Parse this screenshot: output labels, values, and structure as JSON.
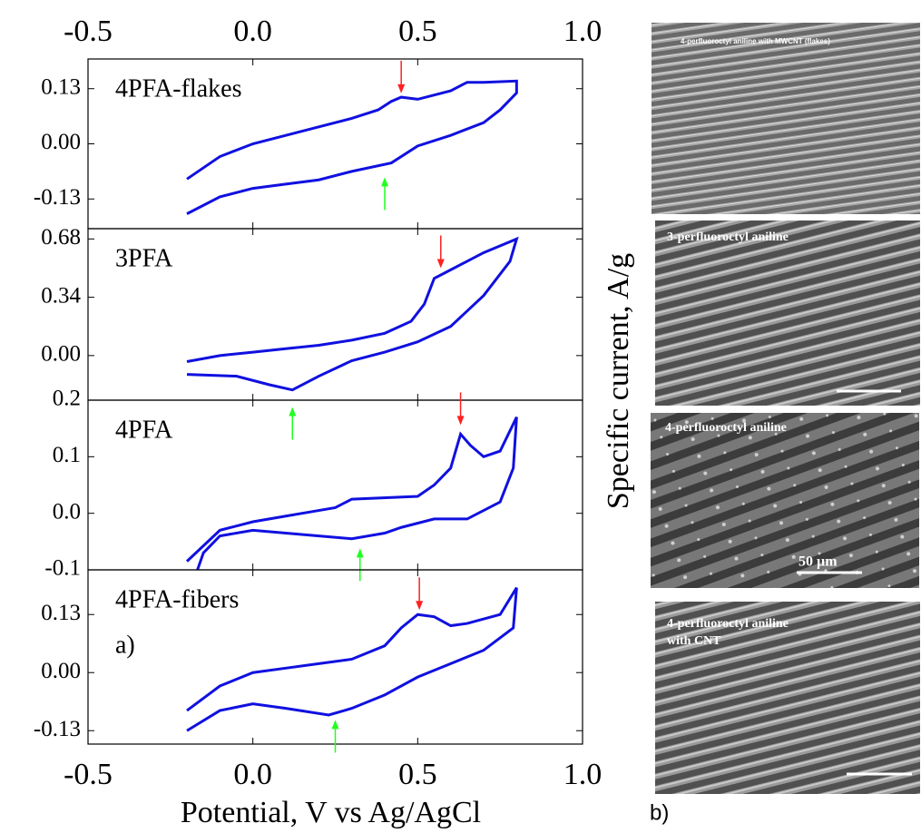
{
  "chart_data": [
    {
      "type": "line",
      "label": "4PFA-flakes",
      "color": "#1010e0",
      "xlim": [
        -0.5,
        1.0
      ],
      "xticks": [
        -0.5,
        {
          "value": 0,
          "label": "0.0"
        },
        0.5,
        {
          "value": 1,
          "label": "1.0"
        }
      ],
      "ylim": [
        -0.2,
        0.2
      ],
      "yticks": [
        0.13,
        {
          "value": 0,
          "label": "0.00"
        },
        -0.13
      ],
      "x": [
        -0.2,
        -0.1,
        0,
        0.1,
        0.2,
        0.3,
        0.38,
        0.42,
        0.45,
        0.5,
        0.6,
        0.65,
        0.7,
        0.8,
        0.8,
        0.75,
        0.7,
        0.6,
        0.5,
        0.42,
        0.3,
        0.2,
        0.1,
        0,
        -0.1,
        -0.2
      ],
      "values": [
        -0.083,
        -0.03,
        0.0,
        0.02,
        0.04,
        0.06,
        0.08,
        0.1,
        0.11,
        0.105,
        0.125,
        0.145,
        0.145,
        0.148,
        0.12,
        0.08,
        0.05,
        0.02,
        -0.005,
        -0.045,
        -0.065,
        -0.085,
        -0.095,
        -0.105,
        -0.125,
        -0.165
      ],
      "arrows": [
        {
          "x": 0.45,
          "y": 0.119,
          "color": "#ff2020",
          "direction": "down"
        },
        {
          "x": 0.4,
          "y": -0.079,
          "color": "#20ff20",
          "direction": "up"
        }
      ]
    },
    {
      "type": "line",
      "label": "3PFA",
      "color": "#1010e0",
      "xlim": [
        -0.5,
        1.0
      ],
      "xticks": [
        -0.5,
        {
          "value": 0,
          "label": "0.0"
        },
        0.5,
        {
          "value": 1,
          "label": "1.0"
        }
      ],
      "ylim": [
        -0.26,
        0.74
      ],
      "yticks": [
        0.68,
        0.34,
        {
          "value": 0,
          "label": "0.00"
        }
      ],
      "x": [
        -0.2,
        -0.1,
        0,
        0.1,
        0.2,
        0.3,
        0.4,
        0.48,
        0.52,
        0.55,
        0.6,
        0.65,
        0.7,
        0.8,
        0.78,
        0.7,
        0.6,
        0.5,
        0.4,
        0.3,
        0.2,
        0.12,
        0.05,
        -0.05,
        -0.2
      ],
      "values": [
        -0.035,
        0.0,
        0.02,
        0.04,
        0.06,
        0.09,
        0.13,
        0.2,
        0.3,
        0.45,
        0.5,
        0.55,
        0.6,
        0.68,
        0.55,
        0.35,
        0.17,
        0.08,
        0.02,
        -0.03,
        -0.12,
        -0.2,
        -0.17,
        -0.12,
        -0.11
      ],
      "arrows": [
        {
          "x": 0.57,
          "y": 0.51,
          "color": "#ff2020",
          "direction": "down"
        },
        {
          "x": 0.12,
          "y": -0.3,
          "color": "#20ff20",
          "direction": "up"
        }
      ]
    },
    {
      "type": "line",
      "label": "4PFA",
      "color": "#1010e0",
      "xlim": [
        -0.5,
        1.0
      ],
      "xticks": [
        -0.5,
        {
          "value": 0,
          "label": "0.0"
        },
        0.5,
        {
          "value": 1,
          "label": "1.0"
        }
      ],
      "ylim": [
        -0.1,
        0.2
      ],
      "yticks": [
        0.2,
        0.1,
        {
          "value": 0,
          "label": "0.0"
        },
        -0.1
      ],
      "x": [
        -0.2,
        -0.1,
        0,
        0.1,
        0.2,
        0.25,
        0.3,
        0.5,
        0.55,
        0.6,
        0.63,
        0.66,
        0.7,
        0.75,
        0.8,
        0.79,
        0.75,
        0.65,
        0.55,
        0.45,
        0.4,
        0.3,
        0.2,
        0.1,
        0,
        -0.1,
        -0.15,
        -0.18
      ],
      "values": [
        -0.085,
        -0.03,
        -0.015,
        -0.005,
        0.005,
        0.01,
        0.025,
        0.03,
        0.05,
        0.08,
        0.14,
        0.12,
        0.1,
        0.11,
        0.17,
        0.08,
        0.02,
        -0.01,
        -0.01,
        -0.025,
        -0.035,
        -0.045,
        -0.04,
        -0.035,
        -0.03,
        -0.04,
        -0.07,
        -0.12
      ],
      "arrows": [
        {
          "x": 0.63,
          "y": 0.156,
          "color": "#ff2020",
          "direction": "down"
        },
        {
          "x": 0.325,
          "y": -0.062,
          "color": "#20ff20",
          "direction": "up"
        }
      ]
    },
    {
      "type": "line",
      "label": "4PFA-fibers",
      "color": "#1010e0",
      "xlim": [
        -0.5,
        1.0
      ],
      "xticks": [
        -0.5,
        {
          "value": 0,
          "label": "0.0"
        },
        0.5,
        {
          "value": 1,
          "label": "1.0"
        }
      ],
      "ylim": [
        -0.16,
        0.23
      ],
      "yticks": [
        0.13,
        {
          "value": 0,
          "label": "0.00"
        },
        -0.13
      ],
      "xlabel": "Potential, V vs Ag/AgCl",
      "x": [
        -0.2,
        -0.1,
        0,
        0.1,
        0.2,
        0.3,
        0.4,
        0.45,
        0.5,
        0.55,
        0.6,
        0.65,
        0.75,
        0.8,
        0.79,
        0.7,
        0.6,
        0.5,
        0.4,
        0.3,
        0.23,
        0.1,
        0,
        -0.1,
        -0.2
      ],
      "values": [
        -0.085,
        -0.03,
        0.0,
        0.01,
        0.02,
        0.03,
        0.06,
        0.1,
        0.13,
        0.125,
        0.105,
        0.11,
        0.13,
        0.19,
        0.1,
        0.05,
        0.02,
        -0.01,
        -0.05,
        -0.08,
        -0.095,
        -0.08,
        -0.07,
        -0.085,
        -0.13
      ],
      "arrows": [
        {
          "x": 0.505,
          "y": 0.14,
          "color": "#ff2020",
          "direction": "down"
        },
        {
          "x": 0.25,
          "y": -0.106,
          "color": "#20ff20",
          "direction": "up"
        }
      ]
    }
  ],
  "figure": {
    "panel_a": "a)",
    "panel_b": "b)",
    "ylabel": "Specific current, A/g"
  },
  "images": [
    {
      "caption": "4-perfluoroctyl aniline with MWCNT (flakes)"
    },
    {
      "caption": "3-perfluoroctyl aniline"
    },
    {
      "caption": "4-perfluoroctyl aniline",
      "scale": "50 µm"
    },
    {
      "caption": [
        "4-perfluoroctyl aniline",
        "with CNT"
      ]
    }
  ]
}
